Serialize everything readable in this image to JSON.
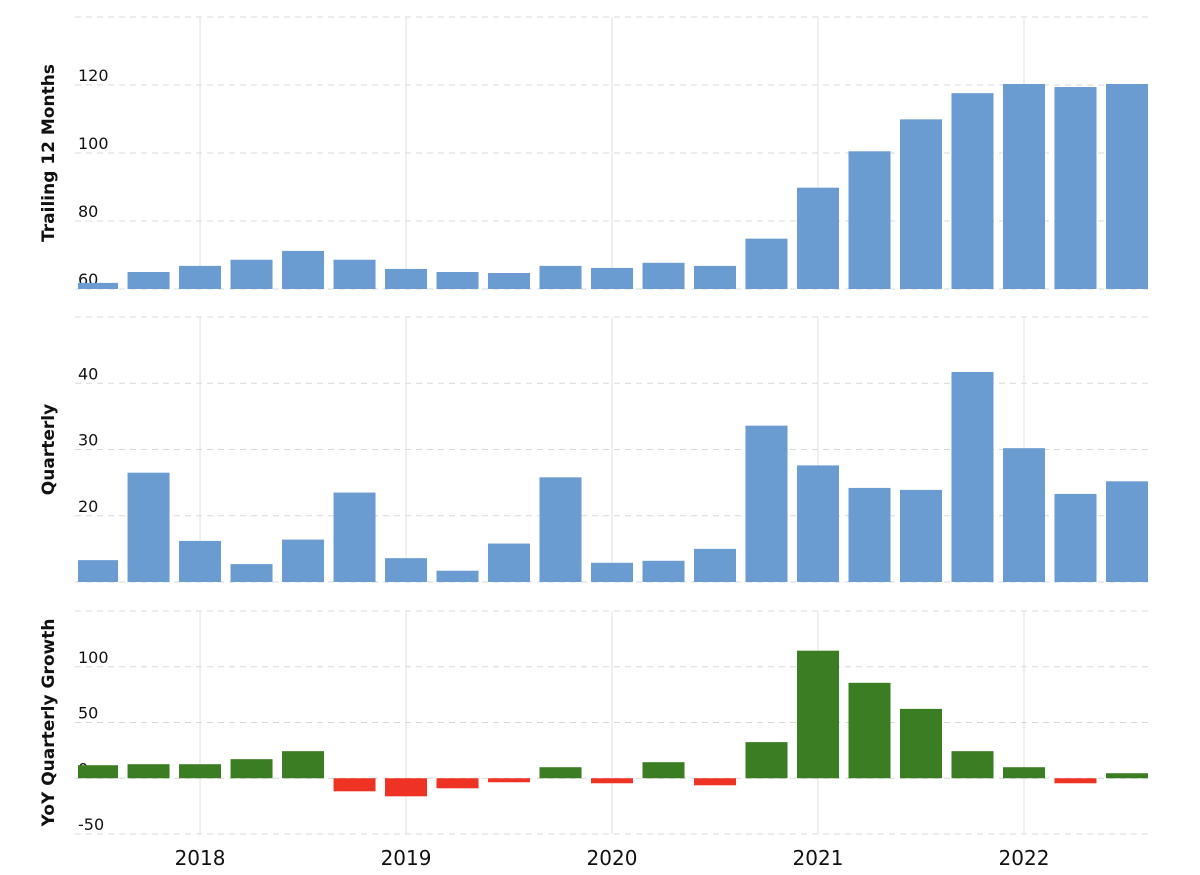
{
  "chart_data": [
    {
      "type": "bar",
      "y_label": "Trailing 12 Months",
      "color": "#6a9bd1",
      "x": [
        2017.5,
        2017.75,
        2018,
        2018.25,
        2018.5,
        2018.75,
        2019,
        2019.25,
        2019.5,
        2019.75,
        2020,
        2020.25,
        2020.5,
        2020.75,
        2021,
        2021.25,
        2021.5,
        2021.75,
        2022,
        2022.25,
        2022.5
      ],
      "values": [
        61.8,
        65,
        66.8,
        68.6,
        71.2,
        68.6,
        65.9,
        65,
        64.7,
        66.8,
        66.2,
        67.7,
        66.8,
        74.8,
        89.8,
        100.5,
        109.9,
        117.6,
        120.3,
        119.4,
        120.3
      ],
      "xlim": [
        2017.393,
        2022.602
      ],
      "xticks": [
        2018,
        2019,
        2020,
        2021,
        2022
      ],
      "ylim": [
        60,
        140
      ],
      "yticks": [
        60,
        80,
        100,
        120
      ],
      "grid": true
    },
    {
      "type": "bar",
      "y_label": "Quarterly",
      "color": "#6a9bd1",
      "x": [
        2017.5,
        2017.75,
        2018,
        2018.25,
        2018.5,
        2018.75,
        2019,
        2019.25,
        2019.5,
        2019.75,
        2020,
        2020.25,
        2020.5,
        2020.75,
        2021,
        2021.25,
        2021.5,
        2021.75,
        2022,
        2022.25,
        2022.5
      ],
      "values": [
        13.3,
        26.5,
        16.2,
        12.7,
        16.4,
        23.5,
        13.6,
        11.7,
        15.8,
        25.8,
        12.9,
        13.2,
        15,
        33.6,
        27.6,
        24.2,
        23.9,
        41.7,
        30.2,
        23.3,
        25.2
      ],
      "xlim": [
        2017.393,
        2022.602
      ],
      "xticks": [
        2018,
        2019,
        2020,
        2021,
        2022
      ],
      "ylim": [
        10,
        50
      ],
      "yticks": [
        10,
        20,
        30,
        40
      ],
      "grid": true
    },
    {
      "type": "bar",
      "y_label": "YoY Quarterly Growth",
      "color": "#3a7d22",
      "negative_color": "#ee3224",
      "x": [
        2017.5,
        2017.75,
        2018,
        2018.25,
        2018.5,
        2018.75,
        2019,
        2019.25,
        2019.5,
        2019.75,
        2020,
        2020.25,
        2020.5,
        2020.75,
        2021,
        2021.25,
        2021.5,
        2021.75,
        2022,
        2022.25,
        2022.5
      ],
      "values": [
        11.7,
        12.6,
        12.6,
        17.1,
        24.3,
        -11.7,
        -16.2,
        -9,
        -3.6,
        9.9,
        -4.5,
        14.4,
        -6.3,
        32.4,
        114.4,
        85.6,
        62.2,
        24.3,
        9.9,
        -4.5,
        4.5
      ],
      "xlim": [
        2017.393,
        2022.602
      ],
      "xticks": [
        2018,
        2019,
        2020,
        2021,
        2022
      ],
      "show_xtick_labels": true,
      "ylim": [
        -50,
        150
      ],
      "yticks": [
        -50,
        0,
        50,
        100
      ],
      "grid": true
    }
  ]
}
